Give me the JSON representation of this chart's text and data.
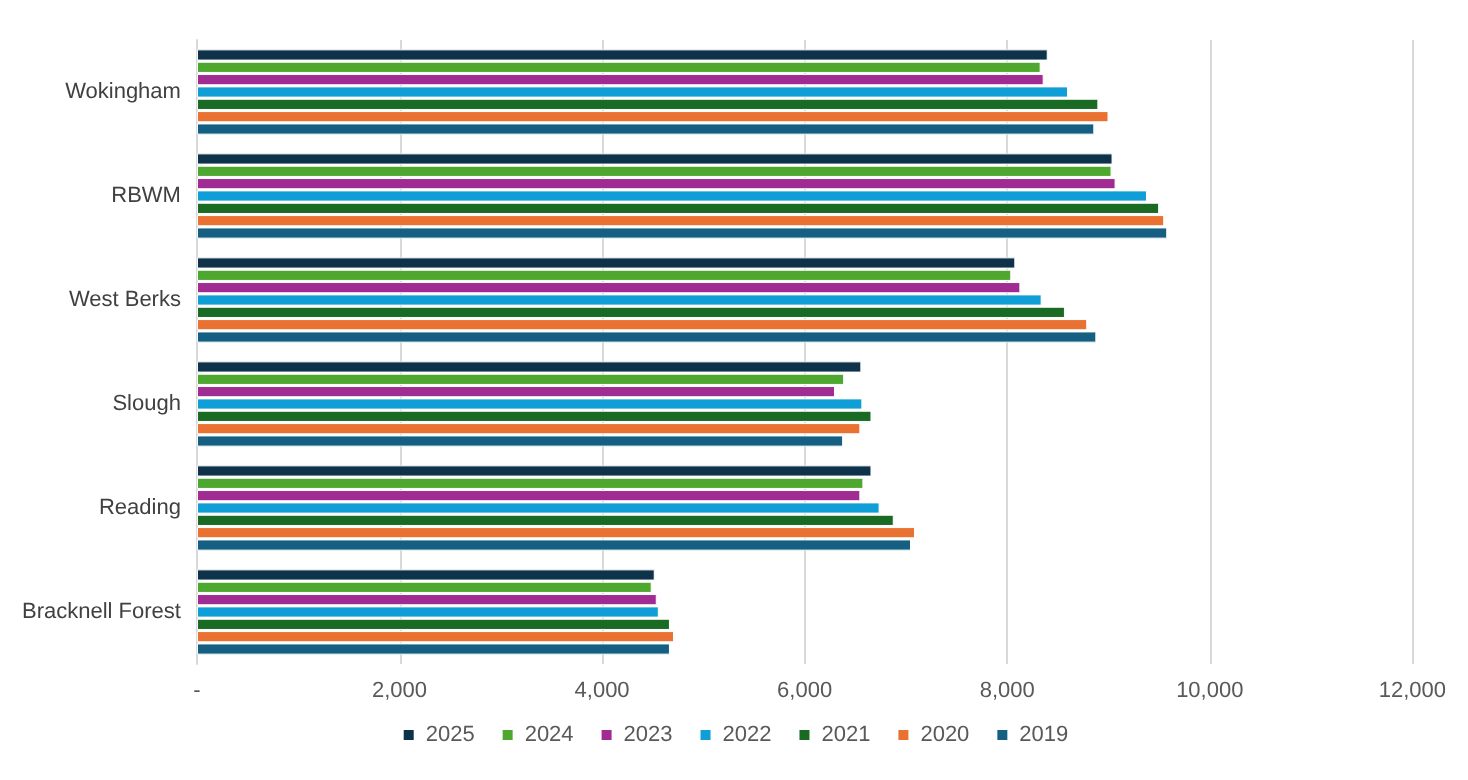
{
  "chart_data": {
    "type": "bar",
    "orientation": "horizontal",
    "categories": [
      "Wokingham",
      "RBWM",
      "West Berks",
      "Slough",
      "Reading",
      "Bracknell Forest"
    ],
    "series": [
      {
        "name": "2025",
        "color": "#0e3249",
        "values": [
          8400,
          9040,
          8080,
          6560,
          6660,
          4520
        ]
      },
      {
        "name": "2024",
        "color": "#4ea72e",
        "values": [
          8330,
          9030,
          8040,
          6390,
          6580,
          4490
        ]
      },
      {
        "name": "2023",
        "color": "#a02b93",
        "values": [
          8360,
          9070,
          8130,
          6300,
          6550,
          4540
        ]
      },
      {
        "name": "2022",
        "color": "#0f9ed5",
        "values": [
          8600,
          9380,
          8340,
          6570,
          6740,
          4560
        ]
      },
      {
        "name": "2021",
        "color": "#196b24",
        "values": [
          8900,
          9500,
          8570,
          6660,
          6880,
          4670
        ]
      },
      {
        "name": "2020",
        "color": "#e97132",
        "values": [
          9000,
          9550,
          8790,
          6550,
          7090,
          4710
        ]
      },
      {
        "name": "2019",
        "color": "#156082",
        "values": [
          8860,
          9580,
          8880,
          6380,
          7050,
          4670
        ]
      }
    ],
    "xlim": [
      0,
      12000
    ],
    "xticks": [
      {
        "value": 0,
        "label": "-"
      },
      {
        "value": 2000,
        "label": "2,000"
      },
      {
        "value": 4000,
        "label": "4,000"
      },
      {
        "value": 6000,
        "label": "6,000"
      },
      {
        "value": 8000,
        "label": "8,000"
      },
      {
        "value": 10000,
        "label": "10,000"
      },
      {
        "value": 12000,
        "label": "12,000"
      }
    ],
    "grid": "x",
    "legend": "bottom"
  }
}
